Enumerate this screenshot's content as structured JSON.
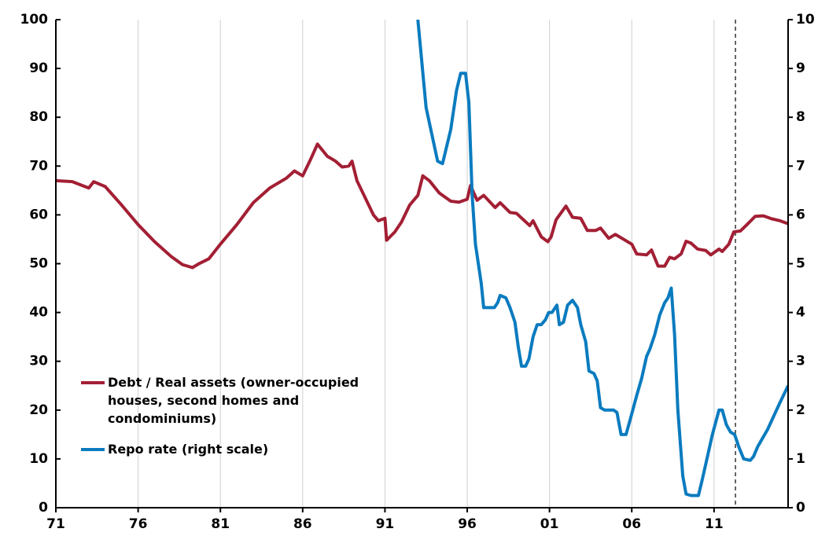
{
  "chart_data": {
    "type": "line",
    "xlim": [
      1971,
      2015.5
    ],
    "xticks": [
      {
        "value": 1971,
        "label": "71"
      },
      {
        "value": 1976,
        "label": "76"
      },
      {
        "value": 1981,
        "label": "81"
      },
      {
        "value": 1986,
        "label": "86"
      },
      {
        "value": 1991,
        "label": "91"
      },
      {
        "value": 1996,
        "label": "96"
      },
      {
        "value": 2001,
        "label": "01"
      },
      {
        "value": 2006,
        "label": "06"
      },
      {
        "value": 2011,
        "label": "11"
      }
    ],
    "ylim": [
      0,
      100
    ],
    "yticks": [
      0,
      10,
      20,
      30,
      40,
      50,
      60,
      70,
      80,
      90,
      100
    ],
    "y2lim": [
      0,
      10
    ],
    "y2ticks": [
      0,
      1,
      2,
      3,
      4,
      5,
      6,
      7,
      8,
      9,
      10
    ],
    "grid": true,
    "vline": 2012.3,
    "series": [
      {
        "name": "Debt / Real assets (owner-occupied houses, second homes and condominiums)",
        "color": "#a31f34",
        "x": [
          1971,
          1972,
          1973,
          1973.3,
          1974,
          1975,
          1976,
          1977,
          1978,
          1978.7,
          1979.3,
          1979.7,
          1980.3,
          1981,
          1982,
          1983,
          1984,
          1985,
          1985.5,
          1986,
          1986.5,
          1986.9,
          1987.5,
          1988,
          1988.4,
          1988.8,
          1989,
          1989.3,
          1989.8,
          1990.3,
          1990.6,
          1991,
          1991.1,
          1991.6,
          1992,
          1992.5,
          1993,
          1993.3,
          1993.7,
          1994.3,
          1995,
          1995.5,
          1996,
          1996.2,
          1996.6,
          1997,
          1997.7,
          1998,
          1998.6,
          1999,
          1999.8,
          2000,
          2000.5,
          2000.9,
          2001.1,
          2001.4,
          2002,
          2002.4,
          2002.9,
          2003.3,
          2003.8,
          2004.1,
          2004.6,
          2005,
          2005.5,
          2006,
          2006.3,
          2006.9,
          2007.2,
          2007.6,
          2008,
          2008.3,
          2008.6,
          2009,
          2009.3,
          2009.6,
          2010,
          2010.5,
          2010.8,
          2011.3,
          2011.5,
          2011.9,
          2012.2,
          2012.6,
          2013,
          2013.5,
          2014,
          2014.5,
          2015,
          2015.5
        ],
        "values": [
          67,
          66.8,
          65.5,
          66.8,
          65.8,
          62,
          58,
          54.5,
          51.5,
          49.8,
          49.2,
          50,
          51,
          54,
          58,
          62.5,
          65.5,
          67.5,
          69,
          68,
          71.5,
          74.5,
          72,
          71,
          69.8,
          70,
          71,
          67,
          63.5,
          60,
          58.8,
          59.3,
          54.8,
          56.5,
          58.5,
          62,
          64,
          68,
          67,
          64.5,
          62.8,
          62.6,
          63.2,
          66,
          63,
          64,
          61.5,
          62.5,
          60.5,
          60.3,
          57.8,
          58.8,
          55.5,
          54.5,
          55.5,
          59,
          61.8,
          59.5,
          59.3,
          56.8,
          56.8,
          57.3,
          55.2,
          56,
          55,
          54,
          52,
          51.8,
          52.8,
          49.5,
          49.5,
          51.3,
          51,
          52,
          54.6,
          54.2,
          53,
          52.7,
          51.8,
          53,
          52.5,
          54,
          56.5,
          56.7,
          58,
          59.7,
          59.8,
          59.2,
          58.8,
          58.2
        ]
      },
      {
        "name": "Repo rate (right scale)",
        "color": "#0a7bbf",
        "axis": "y2",
        "x": [
          1993,
          1993.5,
          1994.2,
          1994.5,
          1995,
          1995.35,
          1995.6,
          1995.9,
          1996.1,
          1996.3,
          1996.5,
          1996.85,
          1997,
          1997.65,
          1997.85,
          1998,
          1998.35,
          1998.6,
          1998.9,
          1999.1,
          1999.3,
          1999.55,
          1999.75,
          2000,
          2000.25,
          2000.5,
          2000.75,
          2000.95,
          2001.15,
          2001.45,
          2001.6,
          2001.85,
          2002.1,
          2002.4,
          2002.7,
          2002.9,
          2003.2,
          2003.4,
          2003.7,
          2003.9,
          2004.1,
          2004.35,
          2004.9,
          2005.1,
          2005.35,
          2005.65,
          2005.9,
          2006.3,
          2006.6,
          2006.9,
          2007.1,
          2007.4,
          2007.7,
          2008,
          2008.2,
          2008.4,
          2008.6,
          2008.8,
          2009.1,
          2009.3,
          2009.6,
          2010.05,
          2010.3,
          2010.6,
          2010.9,
          2011.3,
          2011.5,
          2011.75,
          2012,
          2012.25,
          2012.5,
          2012.8,
          2013.2,
          2013.4,
          2013.65,
          2014.25,
          2015,
          2015.5
        ],
        "values": [
          10,
          8.2,
          7.1,
          7.05,
          7.75,
          8.55,
          8.9,
          8.9,
          8.3,
          6.4,
          5.4,
          4.6,
          4.1,
          4.1,
          4.2,
          4.35,
          4.3,
          4.1,
          3.8,
          3.3,
          2.9,
          2.9,
          3.05,
          3.5,
          3.75,
          3.75,
          3.85,
          4,
          4,
          4.15,
          3.75,
          3.8,
          4.15,
          4.25,
          4.1,
          3.75,
          3.4,
          2.8,
          2.75,
          2.6,
          2.05,
          2,
          2,
          1.95,
          1.5,
          1.5,
          1.8,
          2.3,
          2.65,
          3.1,
          3.25,
          3.55,
          3.95,
          4.2,
          4.3,
          4.5,
          3.55,
          2,
          0.65,
          0.28,
          0.25,
          0.25,
          0.6,
          1.05,
          1.5,
          2,
          2,
          1.7,
          1.55,
          1.5,
          1.25,
          1,
          0.97,
          1.05,
          1.25,
          1.6,
          2.15,
          2.5
        ]
      }
    ]
  }
}
